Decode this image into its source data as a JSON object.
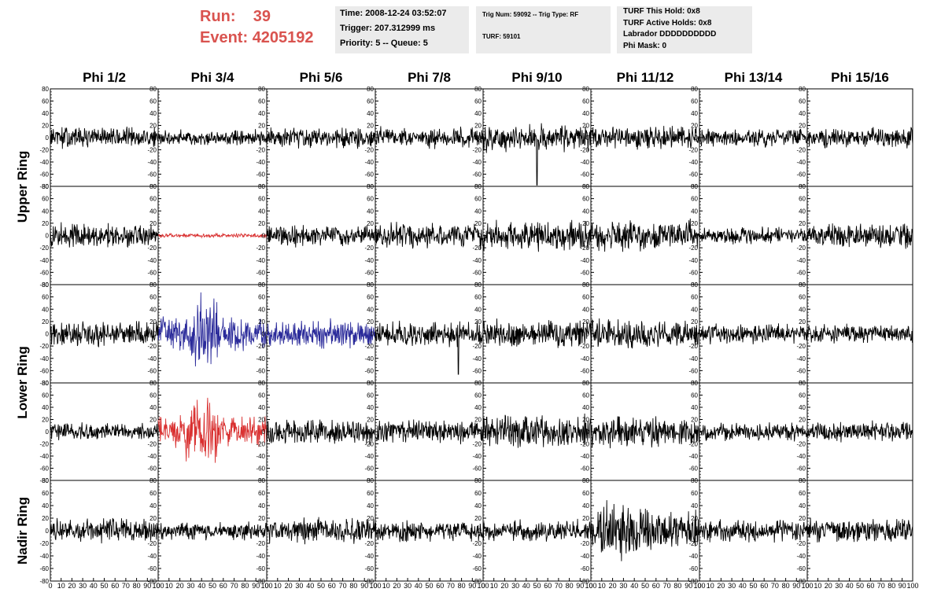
{
  "header": {
    "run_label": "Run:",
    "run_value": "39",
    "event_label": "Event:",
    "event_value": "4205192",
    "title_color": "#d9534f"
  },
  "info_boxes": {
    "time": "Time: 2008-12-24 03:52:07",
    "trigger": "Trigger: 207.312999 ms",
    "priority": "Priority: 5 -- Queue: 5",
    "trig_num": "Trig Num: 59092 -- Trig Type: RF",
    "turf": "TURF: 59101",
    "turf_this_hold": "TURF This Hold: 0x8",
    "turf_active_holds": "TURF Active Holds: 0x8",
    "labrador": "Labrador DDDDDDDDDD",
    "phi_mask": "Phi Mask: 0"
  },
  "chart_data": {
    "type": "line",
    "columns": [
      "Phi 1/2",
      "Phi 3/4",
      "Phi 5/6",
      "Phi 7/8",
      "Phi 9/10",
      "Phi 11/12",
      "Phi 13/14",
      "Phi 15/16"
    ],
    "ring_labels": [
      "Upper Ring",
      "Lower Ring",
      "Nadir Ring"
    ],
    "rows": 5,
    "ylim": [
      -80,
      80
    ],
    "y_ticks": [
      -80,
      -60,
      -40,
      -20,
      0,
      20,
      40,
      60,
      80
    ],
    "xlim": [
      0,
      100
    ],
    "x_ticks": [
      0,
      10,
      20,
      30,
      40,
      50,
      60,
      70,
      80,
      90,
      100
    ],
    "colors": {
      "default": "#000000",
      "triggered": "#d93030",
      "blue": "#2a2a9a"
    },
    "panels": [
      {
        "row": 0,
        "col": 0,
        "amp": 16,
        "color": "default"
      },
      {
        "row": 0,
        "col": 1,
        "amp": 11,
        "color": "default"
      },
      {
        "row": 0,
        "col": 2,
        "amp": 15,
        "color": "default"
      },
      {
        "row": 0,
        "col": 3,
        "amp": 15,
        "color": "default"
      },
      {
        "row": 0,
        "col": 4,
        "amp": 20,
        "color": "default",
        "spike": {
          "x": 50,
          "y": -78
        }
      },
      {
        "row": 0,
        "col": 5,
        "amp": 17,
        "color": "default"
      },
      {
        "row": 0,
        "col": 6,
        "amp": 13,
        "color": "default"
      },
      {
        "row": 0,
        "col": 7,
        "amp": 15,
        "color": "default"
      },
      {
        "row": 1,
        "col": 0,
        "amp": 18,
        "color": "default"
      },
      {
        "row": 1,
        "col": 1,
        "amp": 3,
        "color": "triggered"
      },
      {
        "row": 1,
        "col": 2,
        "amp": 16,
        "color": "default"
      },
      {
        "row": 1,
        "col": 3,
        "amp": 18,
        "color": "default"
      },
      {
        "row": 1,
        "col": 4,
        "amp": 22,
        "color": "default"
      },
      {
        "row": 1,
        "col": 5,
        "amp": 22,
        "color": "default"
      },
      {
        "row": 1,
        "col": 6,
        "amp": 12,
        "color": "default"
      },
      {
        "row": 1,
        "col": 7,
        "amp": 18,
        "color": "default"
      },
      {
        "row": 2,
        "col": 0,
        "amp": 18,
        "color": "default"
      },
      {
        "row": 2,
        "col": 1,
        "amp": 24,
        "color": "blue",
        "burst": [
          30,
          55,
          52
        ]
      },
      {
        "row": 2,
        "col": 2,
        "amp": 22,
        "color": "blue"
      },
      {
        "row": 2,
        "col": 3,
        "amp": 18,
        "color": "default",
        "spike": {
          "x": 77,
          "y": -66
        }
      },
      {
        "row": 2,
        "col": 4,
        "amp": 20,
        "color": "default"
      },
      {
        "row": 2,
        "col": 5,
        "amp": 20,
        "color": "default"
      },
      {
        "row": 2,
        "col": 6,
        "amp": 15,
        "color": "default"
      },
      {
        "row": 2,
        "col": 7,
        "amp": 13,
        "color": "default"
      },
      {
        "row": 3,
        "col": 0,
        "amp": 13,
        "color": "default"
      },
      {
        "row": 3,
        "col": 1,
        "amp": 24,
        "color": "triggered",
        "burst": [
          25,
          55,
          45
        ]
      },
      {
        "row": 3,
        "col": 2,
        "amp": 18,
        "color": "default"
      },
      {
        "row": 3,
        "col": 3,
        "amp": 18,
        "color": "default"
      },
      {
        "row": 3,
        "col": 4,
        "amp": 24,
        "color": "default"
      },
      {
        "row": 3,
        "col": 5,
        "amp": 22,
        "color": "default"
      },
      {
        "row": 3,
        "col": 6,
        "amp": 13,
        "color": "default"
      },
      {
        "row": 3,
        "col": 7,
        "amp": 15,
        "color": "default"
      },
      {
        "row": 4,
        "col": 0,
        "amp": 17,
        "color": "default"
      },
      {
        "row": 4,
        "col": 1,
        "amp": 13,
        "color": "default"
      },
      {
        "row": 4,
        "col": 2,
        "amp": 18,
        "color": "default"
      },
      {
        "row": 4,
        "col": 3,
        "amp": 15,
        "color": "default"
      },
      {
        "row": 4,
        "col": 4,
        "amp": 15,
        "color": "default"
      },
      {
        "row": 4,
        "col": 5,
        "amp": 30,
        "color": "default",
        "burst": [
          10,
          45,
          45
        ]
      },
      {
        "row": 4,
        "col": 6,
        "amp": 16,
        "color": "default"
      },
      {
        "row": 4,
        "col": 7,
        "amp": 16,
        "color": "default"
      }
    ]
  }
}
